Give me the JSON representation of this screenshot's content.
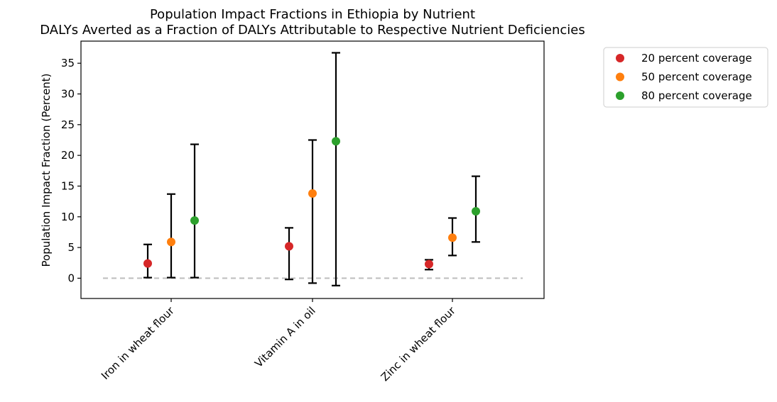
{
  "chart_data": {
    "type": "scatter",
    "title": "Population Impact Fractions in Ethiopia by Nutrient",
    "subtitle": "DALYs Averted as a Fraction of DALYs Attributable to Respective Nutrient Deficiencies",
    "xlabel": "",
    "ylabel": "Population Impact Fraction (Percent)",
    "ylim": [
      -3.3,
      38.6
    ],
    "yticks": [
      0,
      5,
      10,
      15,
      20,
      25,
      30,
      35
    ],
    "categories": [
      "Iron in wheat flour",
      "Vitamin A in oil",
      "Zinc in wheat flour"
    ],
    "reference_line": 0,
    "grid": false,
    "legend_position": "outside-top-right",
    "series": [
      {
        "name": "20 percent coverage",
        "color": "#d62728",
        "values": [
          2.4,
          5.2,
          2.3
        ],
        "lower": [
          0.1,
          -0.2,
          1.4
        ],
        "upper": [
          5.5,
          8.2,
          3.0
        ]
      },
      {
        "name": "50 percent coverage",
        "color": "#ff7f0e",
        "values": [
          5.9,
          13.8,
          6.6
        ],
        "lower": [
          0.1,
          -0.8,
          3.7
        ],
        "upper": [
          13.7,
          22.5,
          9.8
        ]
      },
      {
        "name": "80 percent coverage",
        "color": "#2ca02c",
        "values": [
          9.4,
          22.3,
          10.9
        ],
        "lower": [
          0.1,
          -1.2,
          5.9
        ],
        "upper": [
          21.8,
          36.7,
          16.6
        ]
      }
    ]
  }
}
